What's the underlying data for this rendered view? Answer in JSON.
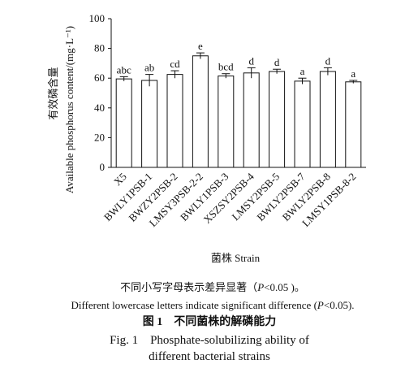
{
  "chart_data": {
    "type": "bar",
    "y_label_cn": "有效磷含量",
    "y_label": "Available phosphorus content/(mg·L⁻¹)",
    "x_label": "菌株 Strain",
    "categories": [
      "X5",
      "BWLY1PSB-1",
      "BWZY2PSB-2",
      "LMSY3PSB-2-2",
      "BWLY1PSB-3",
      "XSZSY2PSB-4",
      "LMSY2PSB-5",
      "BWLY2PSB-7",
      "BWLY2PSB-8",
      "LMSY1PSB-8-2"
    ],
    "values": [
      59.5,
      58.5,
      62.5,
      75,
      61.5,
      63.5,
      64.5,
      58,
      64.5,
      57.5
    ],
    "errors": [
      1.5,
      4,
      2.5,
      2,
      1.5,
      3.5,
      1.5,
      2,
      2.5,
      1
    ],
    "significance_letters": [
      "abc",
      "ab",
      "cd",
      "e",
      "bcd",
      "d",
      "d",
      "a",
      "d",
      "a"
    ],
    "color": "#ffffff",
    "ylim": [
      0,
      100
    ],
    "yticks": [
      0,
      20,
      40,
      60,
      80,
      100
    ]
  },
  "caption": {
    "note_cn": [
      "不同小写字母表示差异显著（",
      "P",
      "<0.05 )。"
    ],
    "note_en": [
      "Different lowercase letters indicate significant difference (",
      "P",
      "<0.05)."
    ],
    "title_cn": "图 1　不同菌株的解磷能力",
    "title_en_1": "Fig. 1　Phosphate-solubilizing ability of",
    "title_en_2": "different bacterial strains"
  }
}
